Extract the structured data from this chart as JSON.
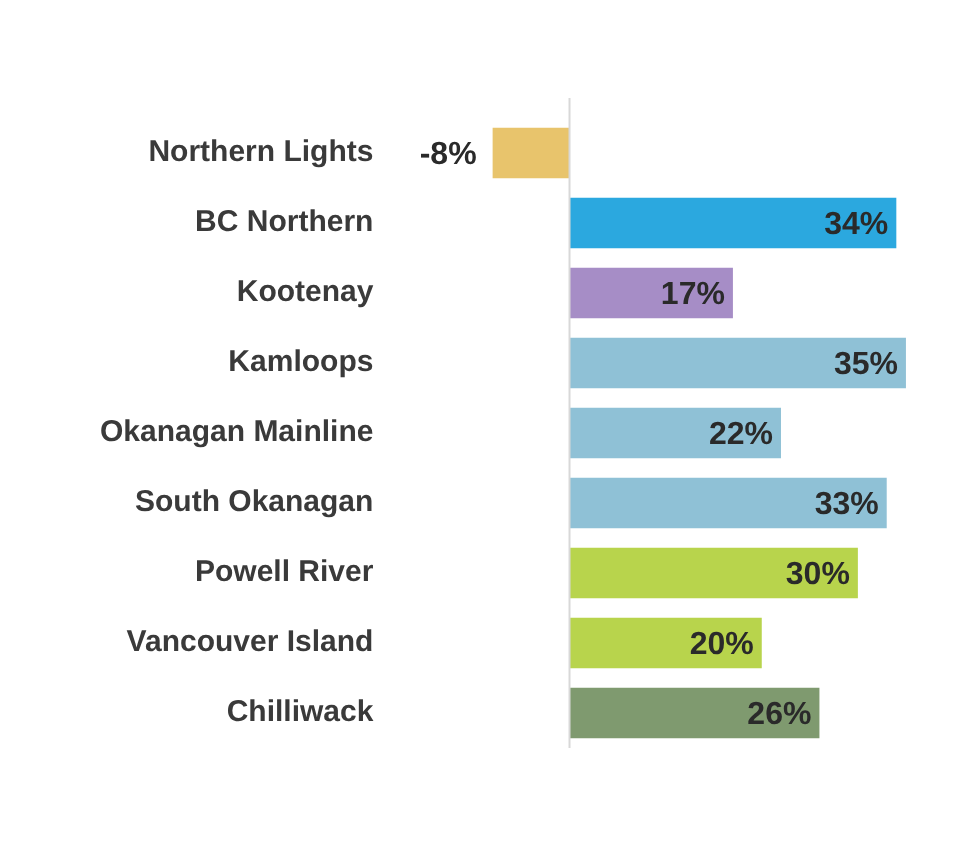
{
  "chart_data": {
    "type": "bar",
    "orientation": "horizontal",
    "categories": [
      "Northern Lights",
      "BC Northern",
      "Kootenay",
      "Kamloops",
      "Okanagan Mainline",
      "South Okanagan",
      "Powell River",
      "Vancouver Island",
      "Chilliwack"
    ],
    "values": [
      -8,
      34,
      17,
      35,
      22,
      33,
      30,
      20,
      26
    ],
    "colors": [
      "#e8c46c",
      "#2ba8df",
      "#a68dc6",
      "#8fc1d6",
      "#8fc1d6",
      "#8fc1d6",
      "#b8d44c",
      "#b8d44c",
      "#7f9a6f"
    ],
    "value_labels": [
      "-8%",
      "34%",
      "17%",
      "35%",
      "22%",
      "33%",
      "30%",
      "20%",
      "26%"
    ],
    "tick_labels": "y",
    "grid": false,
    "legend": false
  }
}
